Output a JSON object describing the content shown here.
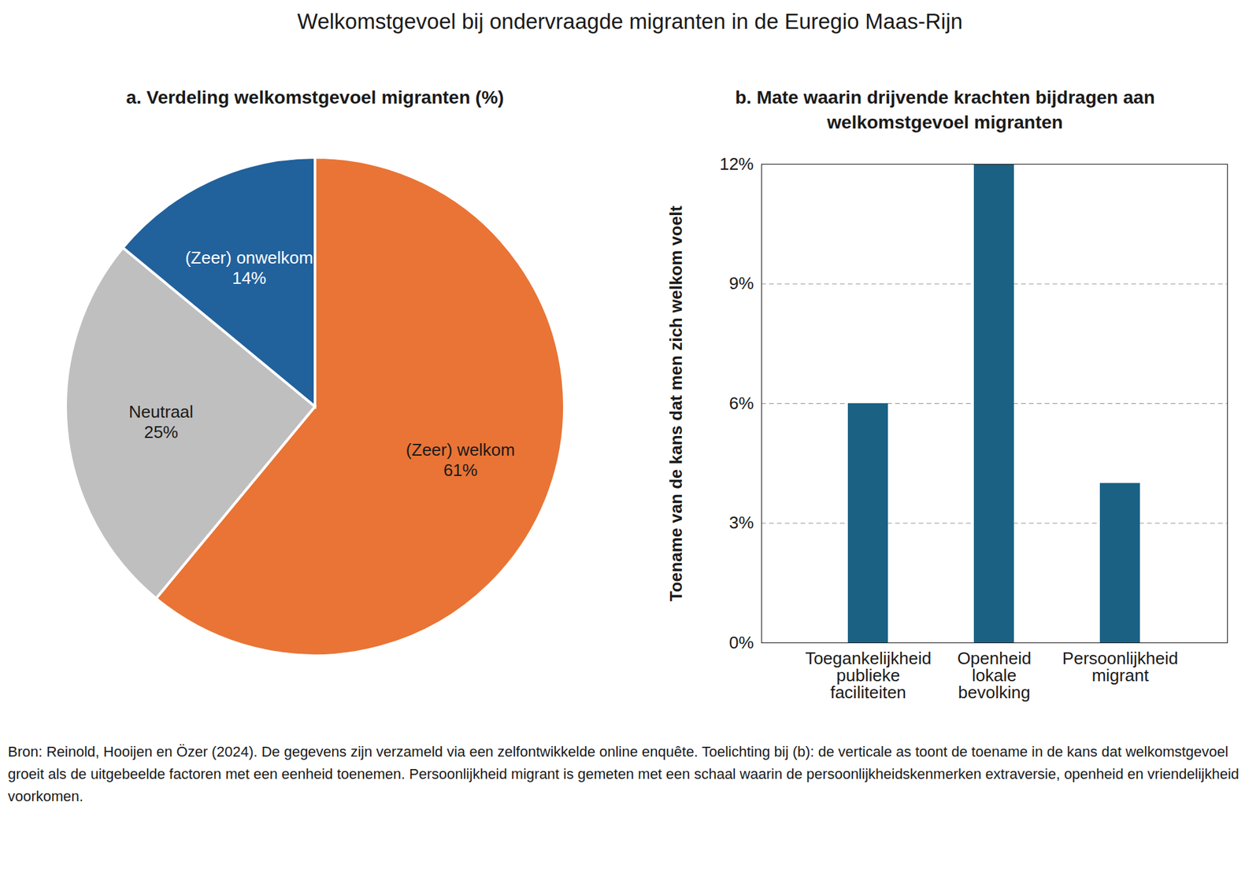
{
  "title": "Welkomstgevoel bij ondervraagde migranten in de Euregio Maas-Rijn",
  "note": "Bron: Reinold, Hooijen en Özer (2024). De gegevens zijn verzameld via een zelfontwikkelde online enquête. Toelichting bij (b): de verticale as toont de toename in de kans dat welkomstgevoel groeit als de uitgebeelde factoren met een eenheid toenemen. Persoonlijkheid migrant is gemeten met een schaal waarin de persoonlijkheidskenmerken extraversie, openheid en vriendelijkheid voorkomen.",
  "chart_data": [
    {
      "type": "pie",
      "title": "a. Verdeling welkomstgevoel migranten (%)",
      "categories": [
        "(Zeer) welkom",
        "Neutraal",
        "(Zeer) onwelkom"
      ],
      "values": [
        61,
        25,
        14
      ],
      "value_labels": [
        "61%",
        "25%",
        "14%"
      ],
      "colors": [
        "#e97435",
        "#bfbfbf",
        "#21619c"
      ],
      "data_labels": true
    },
    {
      "type": "bar",
      "title": "b. Mate waarin drijvende krachten bijdragen aan welkomstgevoel migranten",
      "categories": [
        "Toegankelijkheid\npublieke\nfaciliteiten",
        "Openheid\nlokale\nbevolking",
        "Persoonlijkheid\nmigrant"
      ],
      "values": [
        6,
        12,
        4
      ],
      "color": "#1b6183",
      "ylabel": "Toename van de kans dat men zich welkom voelt",
      "ylim": [
        0,
        12
      ],
      "yticks": [
        {
          "value": 0,
          "label": "0%"
        },
        {
          "value": 3,
          "label": "3%"
        },
        {
          "value": 6,
          "label": "6%"
        },
        {
          "value": 9,
          "label": "9%"
        },
        {
          "value": 12,
          "label": "12%"
        }
      ],
      "grid": true
    }
  ]
}
